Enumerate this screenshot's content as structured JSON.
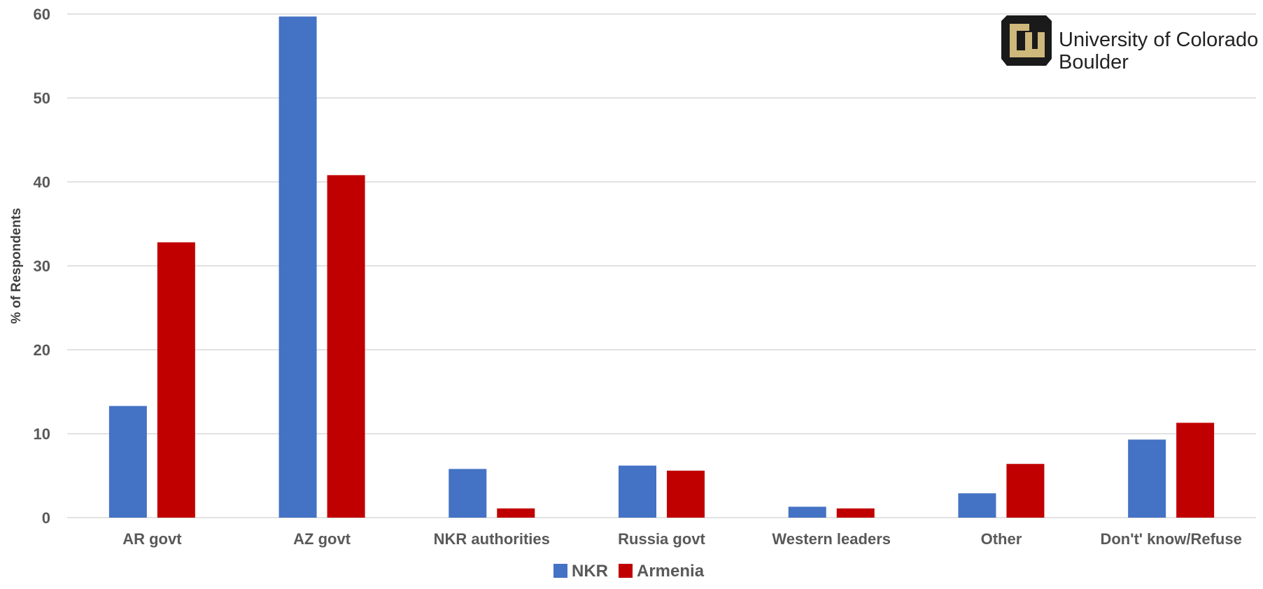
{
  "logo": {
    "line1": "University of Colorado",
    "line2": "Boulder",
    "gold": "#CFB87C",
    "black": "#1a1a1a"
  },
  "chart_data": {
    "type": "bar",
    "categories": [
      "AR govt",
      "AZ govt",
      "NKR authorities",
      "Russia govt",
      "Western leaders",
      "Other",
      "Don't' know/Refuse"
    ],
    "series": [
      {
        "name": "NKR",
        "color": "#4472C4",
        "values": [
          13.3,
          59.7,
          5.8,
          6.2,
          1.3,
          2.9,
          9.3
        ]
      },
      {
        "name": "Armenia",
        "color": "#C00000",
        "values": [
          32.8,
          40.8,
          1.1,
          5.6,
          1.1,
          6.4,
          11.3
        ]
      }
    ],
    "ylabel": "% of Respondents",
    "xlabel": "",
    "ylim": [
      0,
      60
    ],
    "yticks": [
      "0",
      "10",
      "20",
      "30",
      "40",
      "50",
      "60"
    ],
    "grid": true,
    "legend_position": "bottom"
  }
}
